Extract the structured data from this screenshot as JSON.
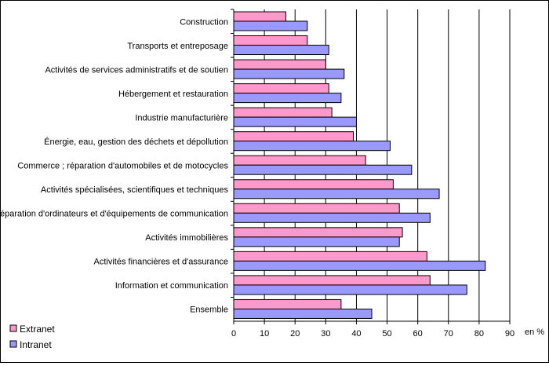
{
  "chart_data": {
    "type": "bar",
    "orientation": "horizontal",
    "categories": [
      "Construction",
      "Transports et entreposage",
      "Activités de services administratifs et de soutien",
      "Hébergement et restauration",
      "Industrie manufacturière",
      "Énergie, eau, gestion des déchets et dépollution",
      "Commerce ; réparation d'automobiles et de motocycles",
      "Activités spécialisées, scientifiques et techniques",
      "Réparation d'ordinateurs et d'équipements de communication",
      "Activités immobilières",
      "Activités financières et d'assurance",
      "Information et communication",
      "Ensemble"
    ],
    "series": [
      {
        "name": "Extranet",
        "color": "#ff99cc",
        "values": [
          17,
          24,
          30,
          31,
          32,
          39,
          43,
          52,
          54,
          55,
          63,
          64,
          35
        ]
      },
      {
        "name": "Intranet",
        "color": "#9999ff",
        "values": [
          24,
          31,
          36,
          35,
          40,
          51,
          58,
          67,
          64,
          54,
          82,
          76,
          45
        ]
      }
    ],
    "xlim": [
      0,
      90
    ],
    "xticks": [
      "0",
      "10",
      "20",
      "30",
      "40",
      "50",
      "60",
      "70",
      "80",
      "90"
    ],
    "unit_label": "en %",
    "grid": "vertical",
    "legend_position": "bottom-left"
  }
}
